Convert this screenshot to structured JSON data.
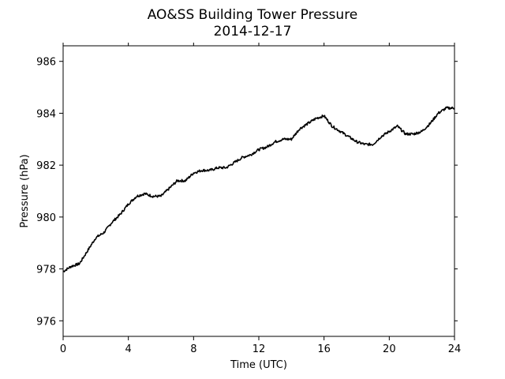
{
  "chart_data": {
    "type": "line",
    "title": "AO&SS Building Tower Pressure",
    "subtitle": "2014-12-17",
    "xlabel": "Time (UTC)",
    "ylabel": "Pressure (hPa)",
    "xlim": [
      0,
      24
    ],
    "ylim": [
      975.4,
      986.6
    ],
    "xticks": [
      0,
      4,
      8,
      12,
      16,
      20,
      24
    ],
    "yticks": [
      976,
      978,
      980,
      982,
      984,
      986
    ],
    "grid": false,
    "legend": "none",
    "line_color": "#000000",
    "series": [
      {
        "x": [
          0,
          0.5,
          1,
          1.5,
          2,
          2.5,
          3,
          3.5,
          4,
          4.5,
          5,
          5.5,
          6,
          6.5,
          7,
          7.5,
          8,
          8.5,
          9,
          9.5,
          10,
          10.5,
          11,
          11.5,
          12,
          12.5,
          13,
          13.5,
          14,
          14.5,
          15,
          15.5,
          16,
          16.5,
          17,
          17.5,
          18,
          18.5,
          19,
          19.5,
          20,
          20.5,
          21,
          21.5,
          22,
          22.5,
          23,
          23.5,
          24
        ],
        "y": [
          977.9,
          978.1,
          978.2,
          978.7,
          979.2,
          979.4,
          979.8,
          980.1,
          980.5,
          980.8,
          980.9,
          980.8,
          980.8,
          981.1,
          981.4,
          981.4,
          981.7,
          981.8,
          981.8,
          981.9,
          981.9,
          982.1,
          982.3,
          982.4,
          982.6,
          982.7,
          982.9,
          983.0,
          983.0,
          983.4,
          983.6,
          983.8,
          983.9,
          983.5,
          983.3,
          983.1,
          982.9,
          982.8,
          982.8,
          983.1,
          983.3,
          983.5,
          983.2,
          983.2,
          983.3,
          983.6,
          984.0,
          984.2,
          984.2
        ]
      }
    ]
  }
}
